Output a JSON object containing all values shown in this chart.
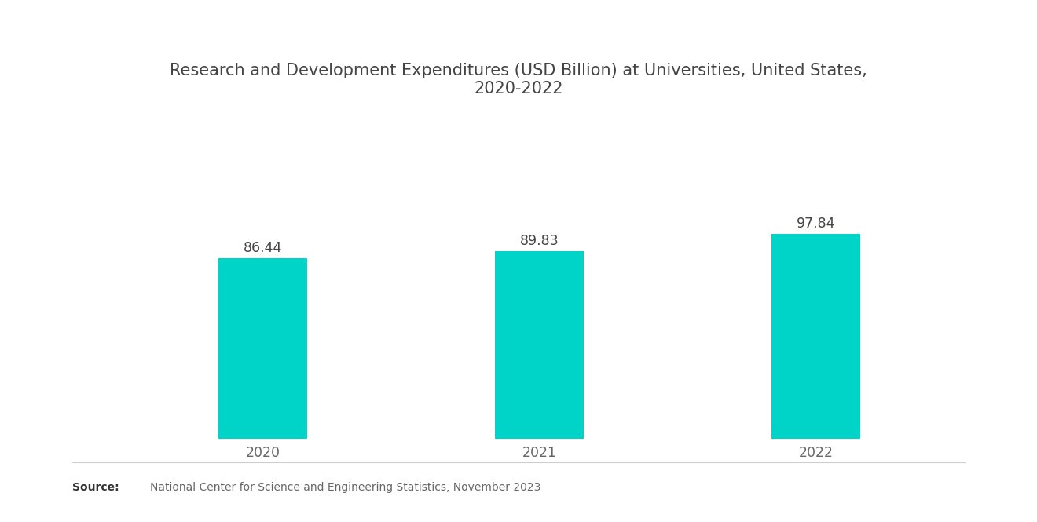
{
  "title": "Research and Development Expenditures (USD Billion) at Universities, United States,\n2020-2022",
  "categories": [
    "2020",
    "2021",
    "2022"
  ],
  "values": [
    86.44,
    89.83,
    97.84
  ],
  "bar_color": "#00D4C8",
  "bar_width": 0.32,
  "value_labels": [
    "86.44",
    "89.83",
    "97.84"
  ],
  "ylim": [
    0,
    155
  ],
  "xlabel": "",
  "ylabel": "",
  "background_color": "#ffffff",
  "title_fontsize": 15,
  "tick_fontsize": 12.5,
  "label_fontsize": 12.5,
  "source_text": "National Center for Science and Engineering Statistics, November 2023",
  "source_label": "Source:",
  "axis_color": "#cccccc",
  "title_color": "#444444",
  "tick_color": "#666666",
  "label_color": "#444444"
}
